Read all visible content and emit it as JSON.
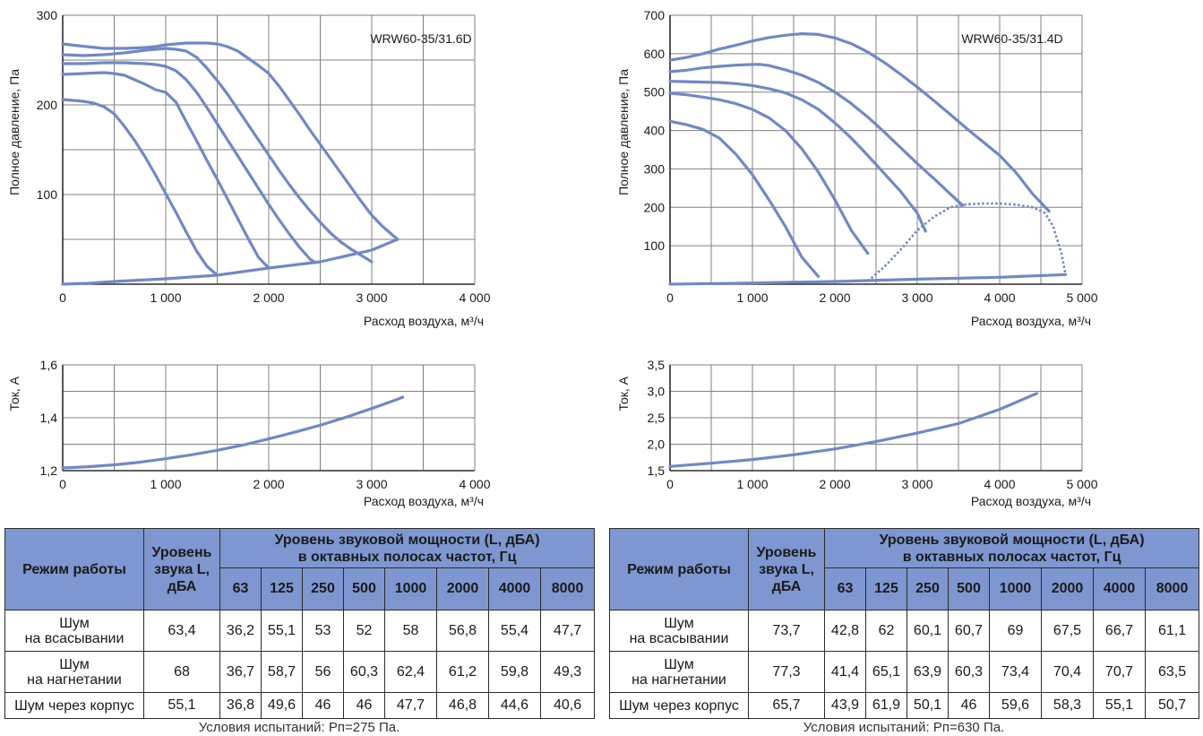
{
  "colors": {
    "curve": "#7188c7",
    "grid": "#808080",
    "axis": "#2b2b2b",
    "header_bg": "#7e97d1"
  },
  "chart_data": [
    {
      "type": "line",
      "model_label": "WRW60-35/31.6D",
      "ylabel": "Полное давление, Па",
      "xlabel": "Расход воздуха, м³/ч",
      "xlim": [
        0,
        4000
      ],
      "ylim": [
        0,
        300
      ],
      "xticks": [
        0,
        500,
        1000,
        1500,
        2000,
        2500,
        3000,
        3500,
        4000
      ],
      "xtick_labels": [
        "0",
        "",
        "1 000",
        "",
        "2 000",
        "",
        "3 000",
        "",
        "4 000"
      ],
      "yticks": [
        0,
        50,
        100,
        150,
        200,
        250,
        300
      ],
      "ytick_labels": [
        "",
        "",
        "100",
        "",
        "200",
        "",
        "300"
      ],
      "grid": true,
      "series": [
        {
          "style": "solid",
          "x": [
            0,
            150,
            400,
            600,
            800,
            900,
            1000,
            1100,
            1200,
            1300,
            1400,
            1500,
            1600,
            1700,
            1800,
            1900,
            2000,
            2100,
            2200,
            2300,
            2400,
            2500,
            2600,
            2700,
            2800,
            2900,
            3000,
            3100,
            3200,
            3250
          ],
          "y": [
            268,
            266,
            263,
            263,
            264,
            265,
            267,
            268,
            269,
            269,
            269,
            268,
            265,
            260,
            252,
            244,
            235,
            221,
            205,
            189,
            172,
            156,
            140,
            124,
            108,
            92,
            77,
            65,
            55,
            50
          ]
        },
        {
          "style": "solid",
          "x": [
            0,
            200,
            400,
            600,
            800,
            1000,
            1100,
            1200,
            1300,
            1400,
            1500,
            1600,
            1700,
            1800,
            1900,
            2000,
            2100,
            2200,
            2300,
            2400,
            2500,
            2600,
            2700,
            2800,
            2900,
            3000
          ],
          "y": [
            256,
            255,
            256,
            258,
            261,
            263,
            262,
            260,
            253,
            241,
            227,
            212,
            195,
            178,
            161,
            144,
            127,
            111,
            96,
            82,
            69,
            57,
            47,
            39,
            32,
            25
          ]
        },
        {
          "style": "solid",
          "x": [
            0,
            200,
            400,
            600,
            800,
            900,
            1000,
            1100,
            1200,
            1300,
            1400,
            1500,
            1600,
            1700,
            1800,
            1900,
            2000,
            2100,
            2200,
            2300,
            2400,
            2450
          ],
          "y": [
            246,
            246,
            247,
            247,
            246,
            245,
            243,
            238,
            228,
            214,
            197,
            179,
            161,
            143,
            125,
            107,
            89,
            72,
            56,
            41,
            28,
            24
          ]
        },
        {
          "style": "solid",
          "x": [
            0,
            200,
            400,
            500,
            600,
            700,
            800,
            900,
            1000,
            1100,
            1150,
            1200,
            1300,
            1400,
            1500,
            1600,
            1700,
            1800,
            1900,
            2000
          ],
          "y": [
            234,
            235,
            236,
            235,
            233,
            228,
            223,
            217,
            214,
            203,
            192,
            181,
            160,
            138,
            117,
            95,
            73,
            51,
            30,
            18
          ]
        },
        {
          "style": "solid",
          "x": [
            0,
            200,
            300,
            400,
            500,
            600,
            700,
            800,
            900,
            1000,
            1100,
            1200,
            1300,
            1400,
            1500
          ],
          "y": [
            206,
            204,
            202,
            198,
            190,
            176,
            160,
            142,
            122,
            101,
            80,
            58,
            37,
            20,
            10
          ]
        },
        {
          "style": "solid",
          "x": [
            0,
            250,
            500,
            1000,
            1500,
            2000,
            2500,
            3000,
            3250
          ],
          "y": [
            0,
            1,
            3,
            6,
            10,
            18,
            25,
            38,
            50
          ]
        }
      ]
    },
    {
      "type": "line",
      "model_label": "WRW60-35/31.4D",
      "ylabel": "Полное давление, Па",
      "xlabel": "Расход воздуха, м³/ч",
      "xlim": [
        0,
        5000
      ],
      "ylim": [
        0,
        700
      ],
      "xticks": [
        0,
        500,
        1000,
        1500,
        2000,
        2500,
        3000,
        3500,
        4000,
        4500,
        5000
      ],
      "xtick_labels": [
        "0",
        "",
        "1 000",
        "",
        "2 000",
        "",
        "3 000",
        "",
        "4 000",
        "",
        "5 000"
      ],
      "yticks": [
        0,
        100,
        200,
        300,
        400,
        500,
        600,
        700
      ],
      "ytick_labels": [
        "",
        "100",
        "200",
        "300",
        "400",
        "500",
        "600",
        "700"
      ],
      "grid": true,
      "series": [
        {
          "style": "solid",
          "x": [
            0,
            200,
            400,
            600,
            800,
            1000,
            1200,
            1400,
            1600,
            1800,
            2000,
            2200,
            2400,
            2600,
            2800,
            3000,
            3200,
            3400,
            3600,
            3800,
            4000,
            4200,
            4400,
            4600
          ],
          "y": [
            583,
            590,
            600,
            612,
            622,
            633,
            642,
            648,
            652,
            650,
            641,
            626,
            604,
            577,
            546,
            513,
            478,
            442,
            405,
            370,
            335,
            290,
            235,
            190
          ]
        },
        {
          "style": "solid",
          "x": [
            0,
            200,
            400,
            600,
            800,
            1000,
            1100,
            1200,
            1400,
            1600,
            1800,
            2000,
            2200,
            2400,
            2600,
            2800,
            3000,
            3200,
            3400,
            3550
          ],
          "y": [
            553,
            557,
            563,
            567,
            570,
            572,
            572,
            569,
            558,
            544,
            525,
            500,
            470,
            435,
            396,
            355,
            314,
            275,
            235,
            205
          ]
        },
        {
          "style": "solid",
          "x": [
            0,
            200,
            400,
            600,
            800,
            1000,
            1200,
            1400,
            1600,
            1800,
            2000,
            2200,
            2400,
            2600,
            2800,
            3000,
            3100
          ],
          "y": [
            528,
            527,
            526,
            525,
            522,
            517,
            509,
            498,
            480,
            455,
            420,
            380,
            335,
            288,
            241,
            185,
            138
          ]
        },
        {
          "style": "solid",
          "x": [
            0,
            200,
            400,
            600,
            800,
            1000,
            1200,
            1400,
            1600,
            1800,
            2000,
            2200,
            2400
          ],
          "y": [
            497,
            493,
            487,
            480,
            470,
            455,
            433,
            400,
            352,
            292,
            220,
            140,
            80
          ]
        },
        {
          "style": "solid",
          "x": [
            0,
            200,
            400,
            600,
            800,
            1000,
            1200,
            1400,
            1600,
            1800
          ],
          "y": [
            424,
            415,
            403,
            380,
            338,
            285,
            220,
            150,
            70,
            20
          ]
        },
        {
          "style": "dotted",
          "x": [
            2400,
            2600,
            2800,
            3000,
            3200,
            3400,
            3600,
            3800,
            4000,
            4200,
            4400,
            4550,
            4650,
            4750,
            4800
          ],
          "y": [
            8,
            45,
            90,
            140,
            175,
            200,
            208,
            210,
            210,
            207,
            200,
            185,
            150,
            80,
            25
          ]
        },
        {
          "style": "solid",
          "x": [
            0,
            1000,
            2000,
            3000,
            4000,
            4800
          ],
          "y": [
            0,
            3,
            7,
            13,
            18,
            25
          ]
        }
      ]
    },
    {
      "type": "line",
      "ylabel": "Ток, А",
      "xlabel": "Расход воздуха, м³/ч",
      "xlim": [
        0,
        4000
      ],
      "ylim": [
        1.2,
        1.6
      ],
      "xticks": [
        0,
        500,
        1000,
        1500,
        2000,
        2500,
        3000,
        3500,
        4000
      ],
      "xtick_labels": [
        "0",
        "",
        "1 000",
        "",
        "2 000",
        "",
        "3 000",
        "",
        "4 000"
      ],
      "yticks": [
        1.2,
        1.3,
        1.4,
        1.5,
        1.6
      ],
      "ytick_labels": [
        "1,2",
        "",
        "1,4",
        "",
        "1,6"
      ],
      "grid": true,
      "series": [
        {
          "style": "solid",
          "x": [
            0,
            250,
            500,
            750,
            1000,
            1250,
            1500,
            1750,
            2000,
            2250,
            2500,
            2750,
            3000,
            3250,
            3300
          ],
          "y": [
            1.21,
            1.215,
            1.222,
            1.232,
            1.245,
            1.26,
            1.277,
            1.297,
            1.32,
            1.345,
            1.372,
            1.402,
            1.435,
            1.47,
            1.478
          ]
        }
      ]
    },
    {
      "type": "line",
      "ylabel": "Ток, А",
      "xlabel": "Расход воздуха, м³/ч",
      "xlim": [
        0,
        5000
      ],
      "ylim": [
        1.5,
        3.5
      ],
      "xticks": [
        0,
        500,
        1000,
        1500,
        2000,
        2500,
        3000,
        3500,
        4000,
        4500,
        5000
      ],
      "xtick_labels": [
        "0",
        "",
        "1 000",
        "",
        "2 000",
        "",
        "3 000",
        "",
        "4 000",
        "",
        "5 000"
      ],
      "yticks": [
        1.5,
        2.0,
        2.5,
        3.0,
        3.5
      ],
      "ytick_labels": [
        "1,5",
        "2,0",
        "2,5",
        "3,0",
        "3,5"
      ],
      "grid": true,
      "series": [
        {
          "style": "solid",
          "x": [
            0,
            500,
            1000,
            1500,
            2000,
            2500,
            3000,
            3500,
            4000,
            4450
          ],
          "y": [
            1.58,
            1.64,
            1.71,
            1.8,
            1.91,
            2.05,
            2.21,
            2.39,
            2.66,
            2.96
          ]
        }
      ]
    }
  ],
  "tables": [
    {
      "col_mode": "Режим работы",
      "col_level": "Уровень звука L, дБА",
      "group_header_line1": "Уровень звуковой мощности (L, дБА)",
      "group_header_line2": "в октавных полосах частот, Гц",
      "bands": [
        "63",
        "125",
        "250",
        "500",
        "1000",
        "2000",
        "4000",
        "8000"
      ],
      "rows": [
        {
          "label_line1": "Шум",
          "label_line2": "на всасывании",
          "level": "63,4",
          "values": [
            "36,2",
            "55,1",
            "53",
            "52",
            "58",
            "56,8",
            "55,4",
            "47,7"
          ]
        },
        {
          "label_line1": "Шум",
          "label_line2": "на нагнетании",
          "level": "68",
          "values": [
            "36,7",
            "58,7",
            "56",
            "60,3",
            "62,4",
            "61,2",
            "59,8",
            "49,3"
          ]
        },
        {
          "label_line1": "Шум через корпус",
          "label_line2": "",
          "level": "55,1",
          "values": [
            "36,8",
            "49,6",
            "46",
            "46",
            "47,7",
            "46,8",
            "44,6",
            "40,6"
          ]
        }
      ],
      "conditions": "Условия испытаний: Рп=275 Па."
    },
    {
      "col_mode": "Режим работы",
      "col_level": "Уровень звука L, дБА",
      "group_header_line1": "Уровень звуковой мощности (L, дБА)",
      "group_header_line2": "в октавных полосах частот, Гц",
      "bands": [
        "63",
        "125",
        "250",
        "500",
        "1000",
        "2000",
        "4000",
        "8000"
      ],
      "rows": [
        {
          "label_line1": "Шум",
          "label_line2": "на всасывании",
          "level": "73,7",
          "values": [
            "42,8",
            "62",
            "60,1",
            "60,7",
            "69",
            "67,5",
            "66,7",
            "61,1"
          ]
        },
        {
          "label_line1": "Шум",
          "label_line2": "на нагнетании",
          "level": "77,3",
          "values": [
            "41,4",
            "65,1",
            "63,9",
            "60,3",
            "73,4",
            "70,4",
            "70,7",
            "63,5"
          ]
        },
        {
          "label_line1": "Шум через корпус",
          "label_line2": "",
          "level": "65,7",
          "values": [
            "43,9",
            "61,9",
            "50,1",
            "46",
            "59,6",
            "58,3",
            "55,1",
            "50,7"
          ]
        }
      ],
      "conditions": "Условия испытаний: Рп=630 Па."
    }
  ]
}
